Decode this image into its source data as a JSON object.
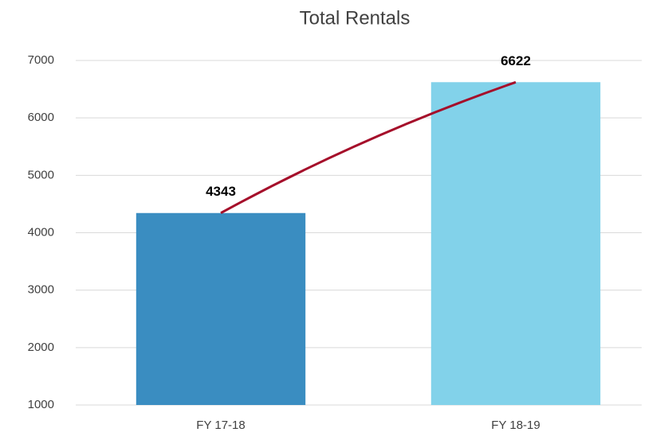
{
  "chart_data": {
    "type": "bar",
    "title": "Total Rentals",
    "categories": [
      "FY 17-18",
      "FY 18-19"
    ],
    "values": [
      4343,
      6622
    ],
    "colors": [
      "#3a8dc1",
      "#82d2ea"
    ],
    "line_color": "#a50e2a",
    "ylim": [
      1000,
      7000
    ],
    "yticks": [
      1000,
      2000,
      3000,
      4000,
      5000,
      6000,
      7000
    ],
    "grid": true
  }
}
